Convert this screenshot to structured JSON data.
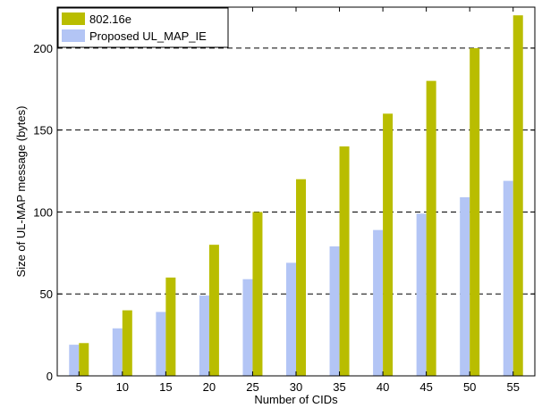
{
  "chart_data": {
    "type": "bar",
    "xlabel": "Number of CIDs",
    "ylabel": "Size of UL-MAP message (bytes)",
    "categories": [
      "5",
      "10",
      "15",
      "20",
      "25",
      "30",
      "35",
      "40",
      "45",
      "50",
      "55"
    ],
    "ylim": [
      0,
      225
    ],
    "yticks": [
      0,
      50,
      100,
      150,
      200
    ],
    "grid": "horizontal-dashed",
    "legend_position": "top-left",
    "series": [
      {
        "name": "Proposed UL_MAP_IE",
        "color": "#b3c5f5",
        "values": [
          19,
          29,
          39,
          49,
          59,
          69,
          79,
          89,
          99,
          109,
          119
        ]
      },
      {
        "name": "802.16e",
        "color": "#b9bd00",
        "values": [
          20,
          40,
          60,
          80,
          100,
          120,
          140,
          160,
          180,
          200,
          220
        ]
      }
    ],
    "legend": [
      {
        "name": "802.16e",
        "color": "#b9bd00"
      },
      {
        "name": "Proposed UL_MAP_IE",
        "color": "#b3c5f5"
      }
    ]
  }
}
